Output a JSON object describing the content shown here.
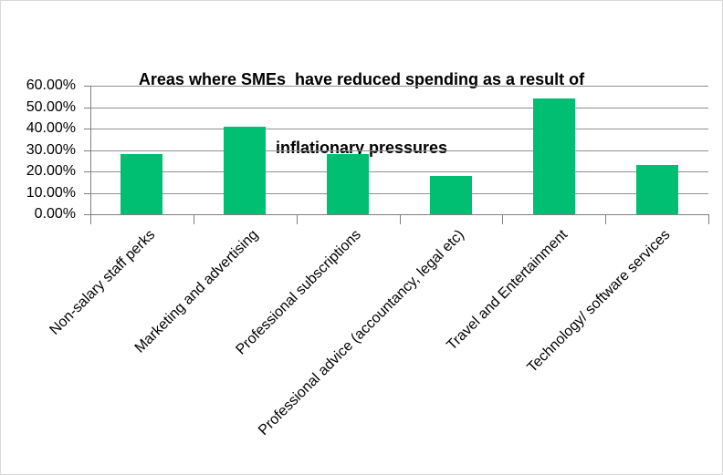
{
  "chart_data": {
    "type": "bar",
    "title": "Areas where SMEs  have reduced spending as a result of inflationary pressures",
    "title_lines": [
      "Areas where SMEs  have reduced spending as a result of",
      "inflationary pressures"
    ],
    "categories": [
      "Non-salary staff perks",
      "Marketing and advertising",
      "Professional subscriptions",
      "Professional advice (accountancy, legal etc)",
      "Travel and Entertainment",
      "Technology/ software services"
    ],
    "values": [
      28,
      41,
      28,
      18,
      54,
      23
    ],
    "unit": "%",
    "xlabel": "",
    "ylabel": "",
    "ylim": [
      0,
      60
    ],
    "y_ticks": [
      "0.00%",
      "10.00%",
      "20.00%",
      "30.00%",
      "40.00%",
      "50.00%",
      "60.00%"
    ],
    "grid": true,
    "legend": false,
    "bar_gap_ratio": 0.41,
    "colors": {
      "bar": "#00BE72",
      "gridline": "#919191",
      "axis": "#808080",
      "text": "#000000",
      "frame_border": "#D9D9D9",
      "background": "#FFFFFF"
    }
  }
}
